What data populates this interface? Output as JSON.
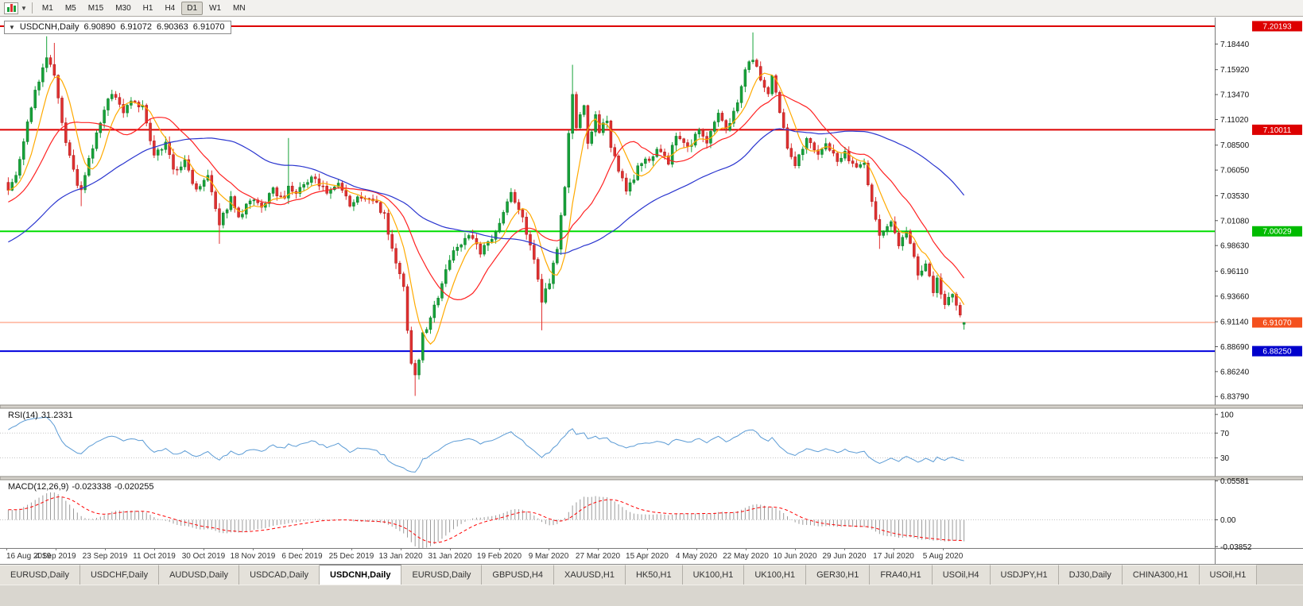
{
  "toolbar": {
    "timeframes": [
      "M1",
      "M5",
      "M15",
      "M30",
      "H1",
      "H4",
      "D1",
      "W1",
      "MN"
    ],
    "active_timeframe": "D1"
  },
  "chart": {
    "collapse_icon": "▼",
    "symbol_label": "USDCNH,Daily",
    "open": "6.90890",
    "high": "6.91072",
    "low": "6.90363",
    "close": "6.91070"
  },
  "indicators": {
    "rsi": {
      "name": "RSI(14)",
      "value": "31.2331",
      "axis": [
        "100",
        "70",
        "30"
      ]
    },
    "macd": {
      "name": "MACD(12,26,9)",
      "main_value": "-0.023338",
      "signal_value": "-0.020255",
      "axis": [
        "0.05581",
        "0.00",
        "-0.03852"
      ]
    }
  },
  "price_axis": {
    "ticks": [
      "7.18440",
      "7.15920",
      "7.13470",
      "7.11020",
      "7.08500",
      "7.06050",
      "7.03530",
      "7.01080",
      "6.98630",
      "6.96110",
      "6.93660",
      "6.91140",
      "6.88690",
      "6.86240",
      "6.83790"
    ]
  },
  "time_axis": {
    "dates": [
      "16 Aug 2019",
      "4 Sep 2019",
      "23 Sep 2019",
      "11 Oct 2019",
      "30 Oct 2019",
      "18 Nov 2019",
      "6 Dec 2019",
      "25 Dec 2019",
      "13 Jan 2020",
      "31 Jan 2020",
      "19 Feb 2020",
      "9 Mar 2020",
      "27 Mar 2020",
      "15 Apr 2020",
      "4 May 2020",
      "22 May 2020",
      "10 Jun 2020",
      "29 Jun 2020",
      "17 Jul 2020",
      "5 Aug 2020"
    ]
  },
  "tabs": {
    "items": [
      "EURUSD,Daily",
      "USDCHF,Daily",
      "AUDUSD,Daily",
      "USDCAD,Daily",
      "USDCNH,Daily",
      "EURUSD,Daily",
      "GBPUSD,H4",
      "XAUUSD,H1",
      "HK50,H1",
      "UK100,H1",
      "UK100,H1",
      "GER30,H1",
      "FRA40,H1",
      "USOil,H4",
      "USDJPY,H1",
      "DJ30,Daily",
      "CHINA300,H1",
      "USOil,H1"
    ],
    "active_index": 4
  },
  "chart_data": {
    "type": "candlestick",
    "symbol": "USDCNH",
    "timeframe": "Daily",
    "n_candles": 250,
    "seed": 9,
    "price_range": [
      6.8295,
      7.2105
    ],
    "warmup": {
      "count": 55,
      "from": 6.93,
      "to": 7.045
    },
    "last_candle": {
      "o": 6.9089,
      "h": 6.91072,
      "l": 6.90363,
      "c": 6.9107
    },
    "price_path": [
      [
        0,
        7.04
      ],
      [
        2,
        7.055
      ],
      [
        4,
        7.085
      ],
      [
        6,
        7.125
      ],
      [
        8,
        7.15
      ],
      [
        10,
        7.17
      ],
      [
        12,
        7.152
      ],
      [
        14,
        7.105
      ],
      [
        17,
        7.058
      ],
      [
        19,
        7.038
      ],
      [
        21,
        7.07
      ],
      [
        24,
        7.108
      ],
      [
        27,
        7.138
      ],
      [
        30,
        7.118
      ],
      [
        32,
        7.13
      ],
      [
        35,
        7.122
      ],
      [
        38,
        7.072
      ],
      [
        41,
        7.09
      ],
      [
        43,
        7.06
      ],
      [
        46,
        7.068
      ],
      [
        49,
        7.042
      ],
      [
        52,
        7.058
      ],
      [
        55,
        7.008
      ],
      [
        58,
        7.032
      ],
      [
        60,
        7.012
      ],
      [
        63,
        7.03
      ],
      [
        66,
        7.024
      ],
      [
        69,
        7.04
      ],
      [
        72,
        7.034
      ],
      [
        73,
        7.042
      ],
      [
        75,
        7.038
      ],
      [
        78,
        7.048
      ],
      [
        80,
        7.055
      ],
      [
        83,
        7.035
      ],
      [
        86,
        7.045
      ],
      [
        89,
        7.026
      ],
      [
        92,
        7.035
      ],
      [
        95,
        7.03
      ],
      [
        98,
        7.018
      ],
      [
        100,
        6.982
      ],
      [
        103,
        6.945
      ],
      [
        104,
        6.905
      ],
      [
        105,
        6.872
      ],
      [
        106,
        6.858
      ],
      [
        107,
        6.875
      ],
      [
        108,
        6.898
      ],
      [
        110,
        6.915
      ],
      [
        112,
        6.938
      ],
      [
        114,
        6.965
      ],
      [
        117,
        6.985
      ],
      [
        120,
        6.998
      ],
      [
        123,
        6.978
      ],
      [
        126,
        6.995
      ],
      [
        129,
        7.018
      ],
      [
        131,
        7.038
      ],
      [
        134,
        7.012
      ],
      [
        136,
        6.988
      ],
      [
        139,
        6.932
      ],
      [
        141,
        6.952
      ],
      [
        143,
        6.985
      ],
      [
        145,
        7.045
      ],
      [
        146,
        7.095
      ],
      [
        147,
        7.135
      ],
      [
        148,
        7.102
      ],
      [
        150,
        7.122
      ],
      [
        151,
        7.088
      ],
      [
        153,
        7.112
      ],
      [
        154,
        7.095
      ],
      [
        156,
        7.112
      ],
      [
        157,
        7.085
      ],
      [
        159,
        7.062
      ],
      [
        161,
        7.038
      ],
      [
        164,
        7.062
      ],
      [
        167,
        7.072
      ],
      [
        169,
        7.082
      ],
      [
        172,
        7.068
      ],
      [
        174,
        7.095
      ],
      [
        177,
        7.082
      ],
      [
        180,
        7.1
      ],
      [
        182,
        7.088
      ],
      [
        185,
        7.115
      ],
      [
        187,
        7.098
      ],
      [
        190,
        7.13
      ],
      [
        192,
        7.158
      ],
      [
        194,
        7.172
      ],
      [
        196,
        7.15
      ],
      [
        198,
        7.132
      ],
      [
        199,
        7.15
      ],
      [
        201,
        7.118
      ],
      [
        203,
        7.082
      ],
      [
        205,
        7.068
      ],
      [
        208,
        7.09
      ],
      [
        211,
        7.074
      ],
      [
        213,
        7.088
      ],
      [
        216,
        7.07
      ],
      [
        218,
        7.076
      ],
      [
        221,
        7.064
      ],
      [
        223,
        7.07
      ],
      [
        225,
        7.028
      ],
      [
        227,
        6.996
      ],
      [
        230,
        7.008
      ],
      [
        232,
        6.988
      ],
      [
        234,
        7.002
      ],
      [
        236,
        6.975
      ],
      [
        237,
        6.955
      ],
      [
        239,
        6.966
      ],
      [
        241,
        6.94
      ],
      [
        242,
        6.952
      ],
      [
        244,
        6.93
      ],
      [
        246,
        6.936
      ],
      [
        248,
        6.92
      ],
      [
        249,
        6.9107
      ]
    ],
    "special_wicks": {
      "10": {
        "high": 7.192
      },
      "12": {
        "high": 7.1855
      },
      "19": {
        "low": 7.025
      },
      "55": {
        "low": 6.988
      },
      "73": {
        "high": 7.092
      },
      "106": {
        "low": 6.8385
      },
      "139": {
        "low": 6.903
      },
      "147": {
        "high": 7.164
      },
      "194": {
        "high": 7.1958
      },
      "227": {
        "low": 6.983
      }
    },
    "colors": {
      "up": "#16a339",
      "up_dark": "#0d7428",
      "down": "#e03030",
      "down_dark": "#a81d1d"
    },
    "moving_averages": [
      {
        "period": 7,
        "color": "#ffaa00"
      },
      {
        "period": 18,
        "color": "#ff2222"
      },
      {
        "period": 55,
        "color": "#2a35cf"
      }
    ],
    "rsi": {
      "period": 14,
      "color": "#5b9bd5",
      "range": [
        0,
        110
      ],
      "levels": [
        70,
        30
      ],
      "current": 31.2331
    },
    "macd": {
      "fast": 12,
      "slow": 26,
      "signal": 9,
      "range": [
        -0.0405,
        0.0575
      ],
      "hist_color": "#9a9a9a",
      "signal_color": "#ff0000",
      "current_main": -0.023338,
      "current_signal": -0.020255
    },
    "levels": [
      {
        "price": 7.20193,
        "label": "7.20193",
        "color": "#dd0000",
        "badge": "#dd0000",
        "width": 2
      },
      {
        "price": 7.10011,
        "label": "7.10011",
        "color": "#dd0000",
        "badge": "#dd0000",
        "width": 2
      },
      {
        "price": 7.00029,
        "label": "7.00029",
        "color": "#00dd00",
        "badge": "#00bb00",
        "width": 2
      },
      {
        "price": 6.9107,
        "label": "6.91070",
        "color": "#ff8a66",
        "badge": "#f4511e",
        "width": 1,
        "current": true
      },
      {
        "price": 6.8825,
        "label": "6.88250",
        "color": "#0000dd",
        "badge": "#0000cc",
        "width": 2
      }
    ]
  }
}
